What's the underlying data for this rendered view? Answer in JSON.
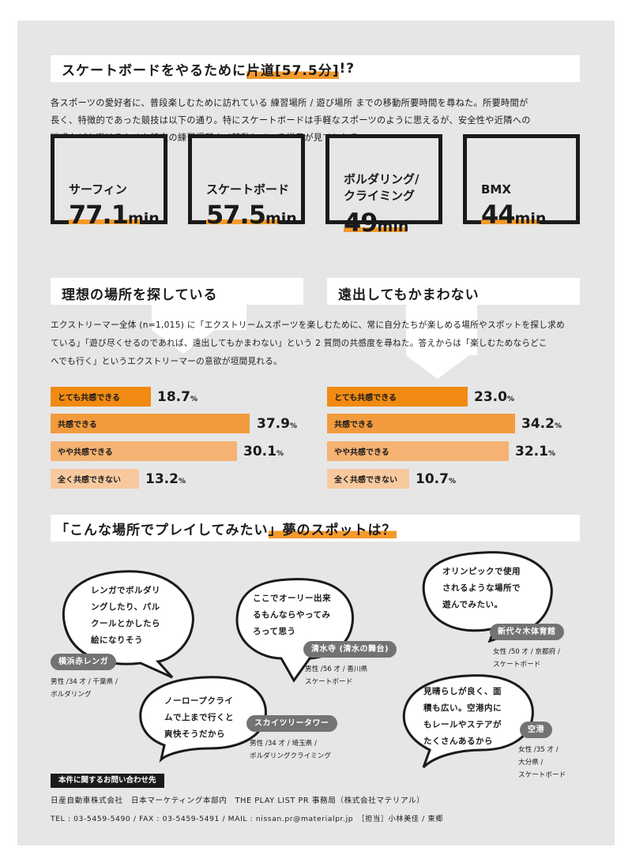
{
  "header": {
    "title_before": "スケートボードをやるために",
    "title_highlight": "片道[57.5分]",
    "title_after": "!?"
  },
  "intro": [
    "各スポーツの愛好者に、普段楽しむために訪れている 練習場所 / 遊び場所 までの移動所要時間を尋ねた。所要時間が",
    "長く、特徴的であった競技は以下の通り。特にスケートボードは手軽なスポーツのように思えるが、安全性や近隣への",
    "迷惑などを避けるためか特定の練習場所まで移動している様子が見てとれる。"
  ],
  "stats": [
    {
      "label": [
        "サーフィン"
      ],
      "value": "77.1",
      "unit": "min"
    },
    {
      "label": [
        "スケートボード"
      ],
      "value": "57.5",
      "unit": "min"
    },
    {
      "label": [
        "ボルダリング/",
        "クライミング"
      ],
      "value": "49",
      "unit": "min"
    },
    {
      "label": [
        "BMX"
      ],
      "value": "44",
      "unit": "min"
    }
  ],
  "survey": {
    "left_title": "理想の場所を探している",
    "right_title": "遠出してもかまわない",
    "desc": [
      "エクストリーマー全体 (n=1,015) に「エクストリームスポーツを楽しむために、常に自分たちが楽しめる場所やスポットを探し求め",
      "ている」「遊び尽くせるのであれば、遠出してもかまわない」という 2 質問の共感度を尋ねた。答えからは「楽しむためならどこ",
      "へでも行く」というエクストリーマーの意欲が垣間見れる。"
    ],
    "categories": [
      "とても共感できる",
      "共感できる",
      "やや共感できる",
      "全く共感できない"
    ],
    "pct_unit": "%",
    "left_values": [
      "18.7",
      "37.9",
      "30.1",
      "13.2"
    ],
    "right_values": [
      "23.0",
      "34.2",
      "32.1",
      "10.7"
    ],
    "colors": [
      "#f08a12",
      "#f29b3e",
      "#f5b272",
      "#f8c99e"
    ]
  },
  "chart_data": [
    {
      "type": "bar",
      "title": "理想の場所を探している",
      "categories": [
        "とても共感できる",
        "共感できる",
        "やや共感できる",
        "全く共感できない"
      ],
      "values": [
        18.7,
        37.9,
        30.1,
        13.2
      ]
    },
    {
      "type": "bar",
      "title": "遠出してもかまわない",
      "categories": [
        "とても共感できる",
        "共感できる",
        "やや共感できる",
        "全く共感できない"
      ],
      "values": [
        23.0,
        34.2,
        32.1,
        10.7
      ]
    }
  ],
  "dream": {
    "title_open": "「",
    "title_mid": "こんな場所でプレイしてみたい",
    "title_close": "」夢のスポットは？",
    "spots": [
      {
        "text": [
          "レンガでボルダリ",
          "ングしたり、パル",
          "クールとかしたら",
          "絵になりそう"
        ],
        "place": "横浜赤レンガ",
        "who": [
          "男性 /34 才 / 千葉県 /",
          "ボルダリング"
        ]
      },
      {
        "text": [
          "ここでオーリー出来",
          "るもんならやってみ",
          "ろって思う"
        ],
        "place": "清水寺 (清水の舞台)",
        "who": [
          "男性 /56 才 / 香川県",
          "スケートボード"
        ]
      },
      {
        "text": [
          "オリンピックで使用",
          "されるような場所で",
          "遊んでみたい。"
        ],
        "place": "新代々木体育館",
        "who": [
          "女性 /50 才 / 京都府 /",
          "スケートボード"
        ]
      },
      {
        "text": [
          "ノーロープクライ",
          "ムで上まで行くと",
          "爽快そうだから"
        ],
        "place": "スカイツリータワー",
        "who": [
          "男性 /34 才 / 埼玉県 /",
          "ボルダリングクライミング"
        ]
      },
      {
        "text": [
          "見晴らしが良く、面",
          "積も広い。空港内に",
          "もレールやステアが",
          "たくさんあるから"
        ],
        "place": "空港",
        "who": [
          "女性 /35 才 /",
          "大分県 /",
          "スケートボード"
        ]
      }
    ]
  },
  "contact": {
    "label": "本件に関するお問い合わせ先",
    "line1": "日産自動車株式会社　日本マーケティング本部内　THE PLAY LIST PR 事務局（株式会社マテリアル）",
    "line2": "TEL : 03-5459-5490 / FAX : 03-5459-5491 / MAIL : nissan.pr@materialpr.jp　［担当］小林美佳 / 東郷"
  }
}
